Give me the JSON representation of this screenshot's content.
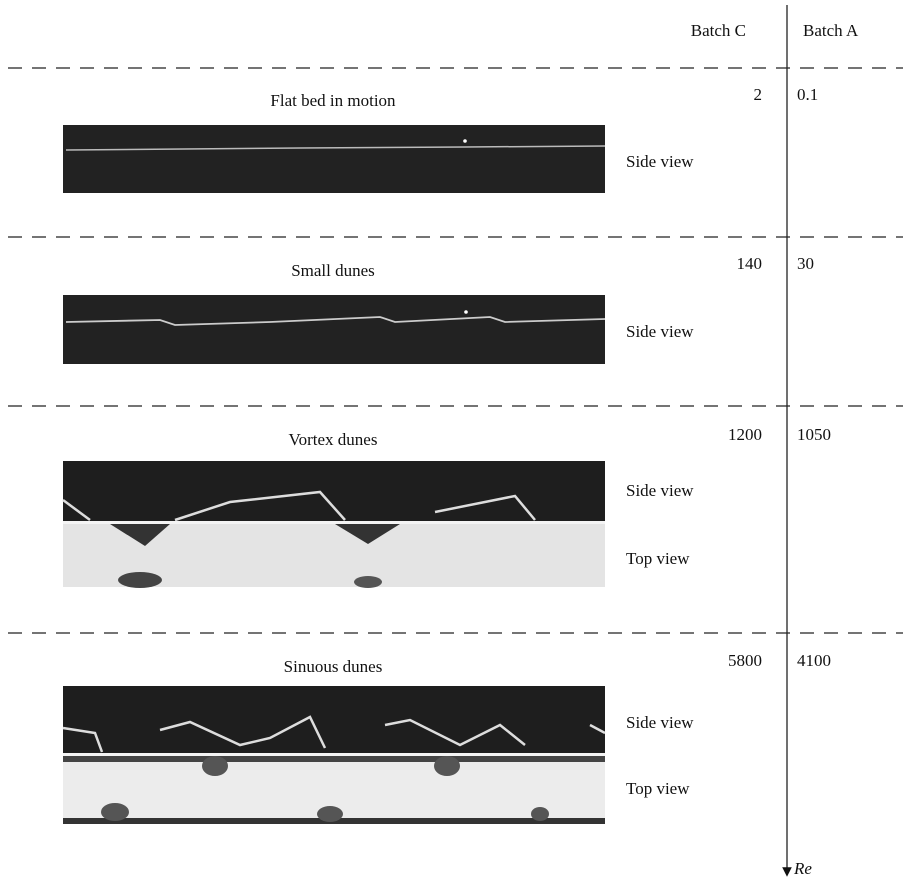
{
  "header": {
    "columns": [
      "Batch C",
      "Batch A"
    ]
  },
  "rows": [
    {
      "title": "Flat bed in motion",
      "batch_c": "2",
      "batch_a": "0.1",
      "views": [
        "Side view"
      ]
    },
    {
      "title": "Small dunes",
      "batch_c": "140",
      "batch_a": "30",
      "views": [
        "Side view"
      ]
    },
    {
      "title": "Vortex dunes",
      "batch_c": "1200",
      "batch_a": "1050",
      "views": [
        "Side view",
        "Top view"
      ]
    },
    {
      "title": "Sinuous dunes",
      "batch_c": "5800",
      "batch_a": "4100",
      "views": [
        "Side view",
        "Top view"
      ]
    }
  ],
  "axis_label": "Re"
}
